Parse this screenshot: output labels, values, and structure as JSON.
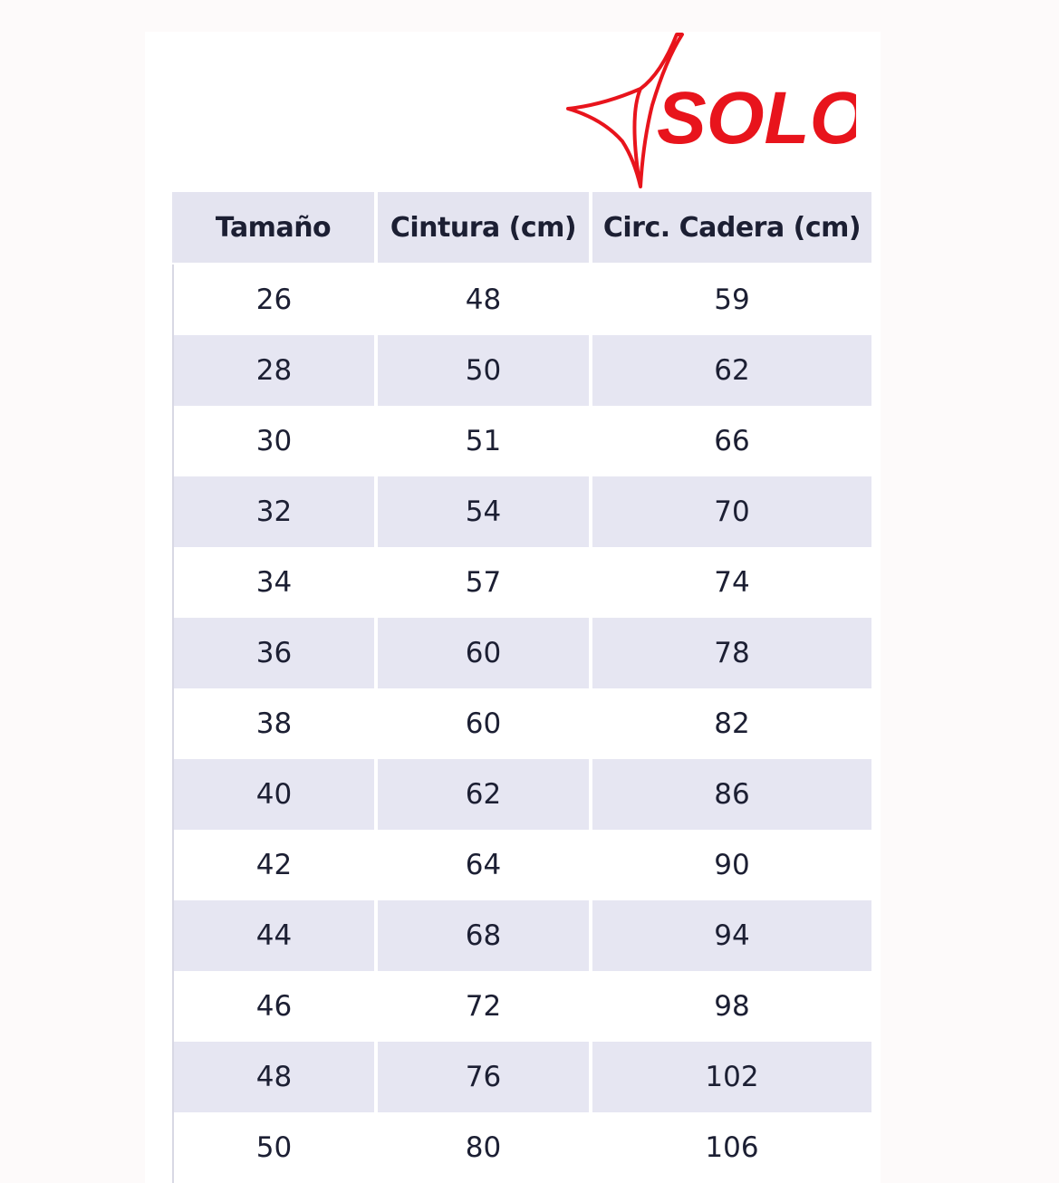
{
  "logo": {
    "text": "SOLO",
    "color": "#e8141c"
  },
  "table": {
    "headers": [
      "Tamaño",
      "Cintura (cm)",
      "Circ. Cadera (cm)"
    ],
    "rows": [
      [
        "26",
        "48",
        "59"
      ],
      [
        "28",
        "50",
        "62"
      ],
      [
        "30",
        "51",
        "66"
      ],
      [
        "32",
        "54",
        "70"
      ],
      [
        "34",
        "57",
        "74"
      ],
      [
        "36",
        "60",
        "78"
      ],
      [
        "38",
        "60",
        "82"
      ],
      [
        "40",
        "62",
        "86"
      ],
      [
        "42",
        "64",
        "90"
      ],
      [
        "44",
        "68",
        "94"
      ],
      [
        "46",
        "72",
        "98"
      ],
      [
        "48",
        "76",
        "102"
      ],
      [
        "50",
        "80",
        "106"
      ]
    ]
  }
}
